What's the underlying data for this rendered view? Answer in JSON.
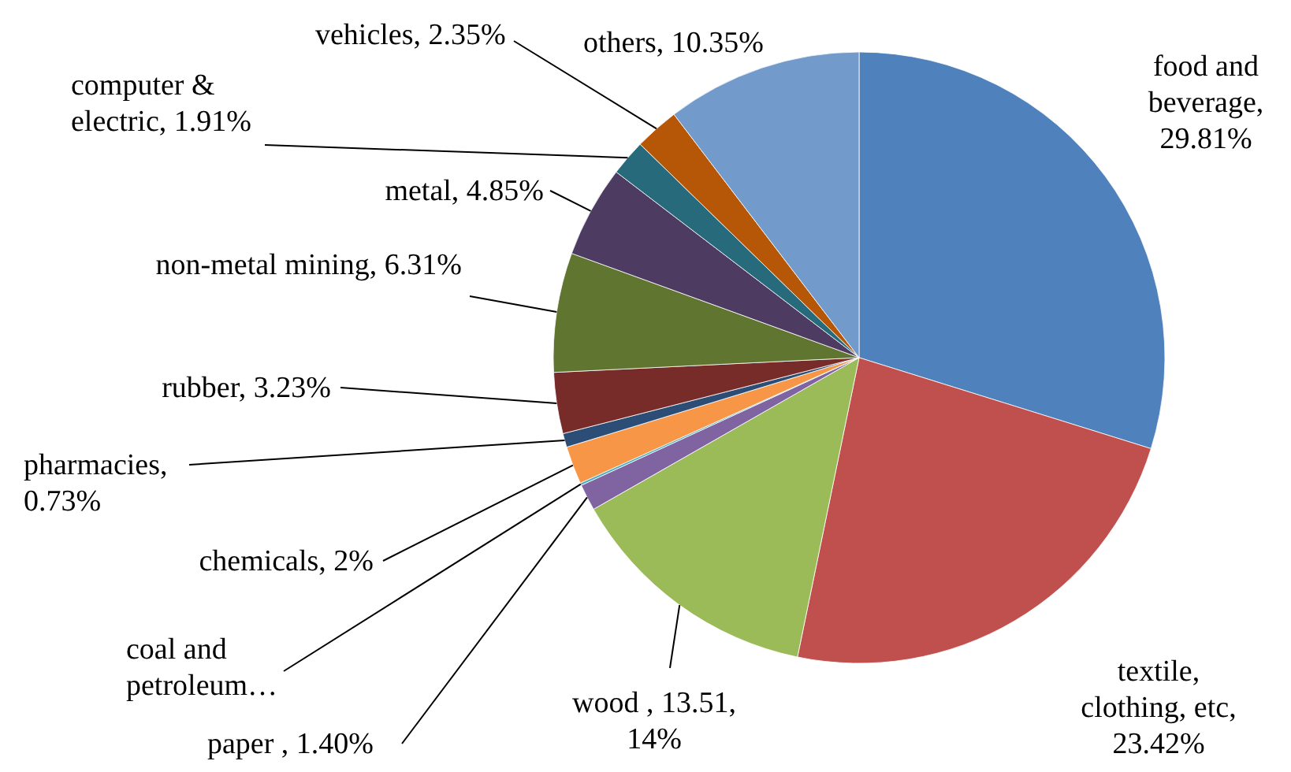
{
  "chart_data": {
    "type": "pie",
    "categories": [
      "food and beverage, 29.81%",
      "textile, clothing, etc, 23.42%",
      "wood , 13.51, 14%",
      "paper , 1.40%",
      "coal and petroleum…",
      "chemicals, 2%",
      "pharmacies, 0.73%",
      "rubber, 3.23%",
      "non-metal mining, 6.31%",
      "metal, 4.85%",
      "computer & electric, 1.91%",
      "vehicles, 2.35%",
      "others, 10.35%"
    ],
    "values": [
      29.81,
      23.42,
      13.51,
      1.4,
      0.13,
      2,
      0.73,
      3.23,
      6.31,
      4.85,
      1.91,
      2.35,
      10.35
    ],
    "colors": [
      "#4f81bd",
      "#c0504d",
      "#9bbb59",
      "#8064a2",
      "#4bacc6",
      "#f79646",
      "#2c4d75",
      "#772c2a",
      "#5f7530",
      "#4d3b62",
      "#276a7c",
      "#b65708",
      "#729aca"
    ],
    "legend": false
  }
}
